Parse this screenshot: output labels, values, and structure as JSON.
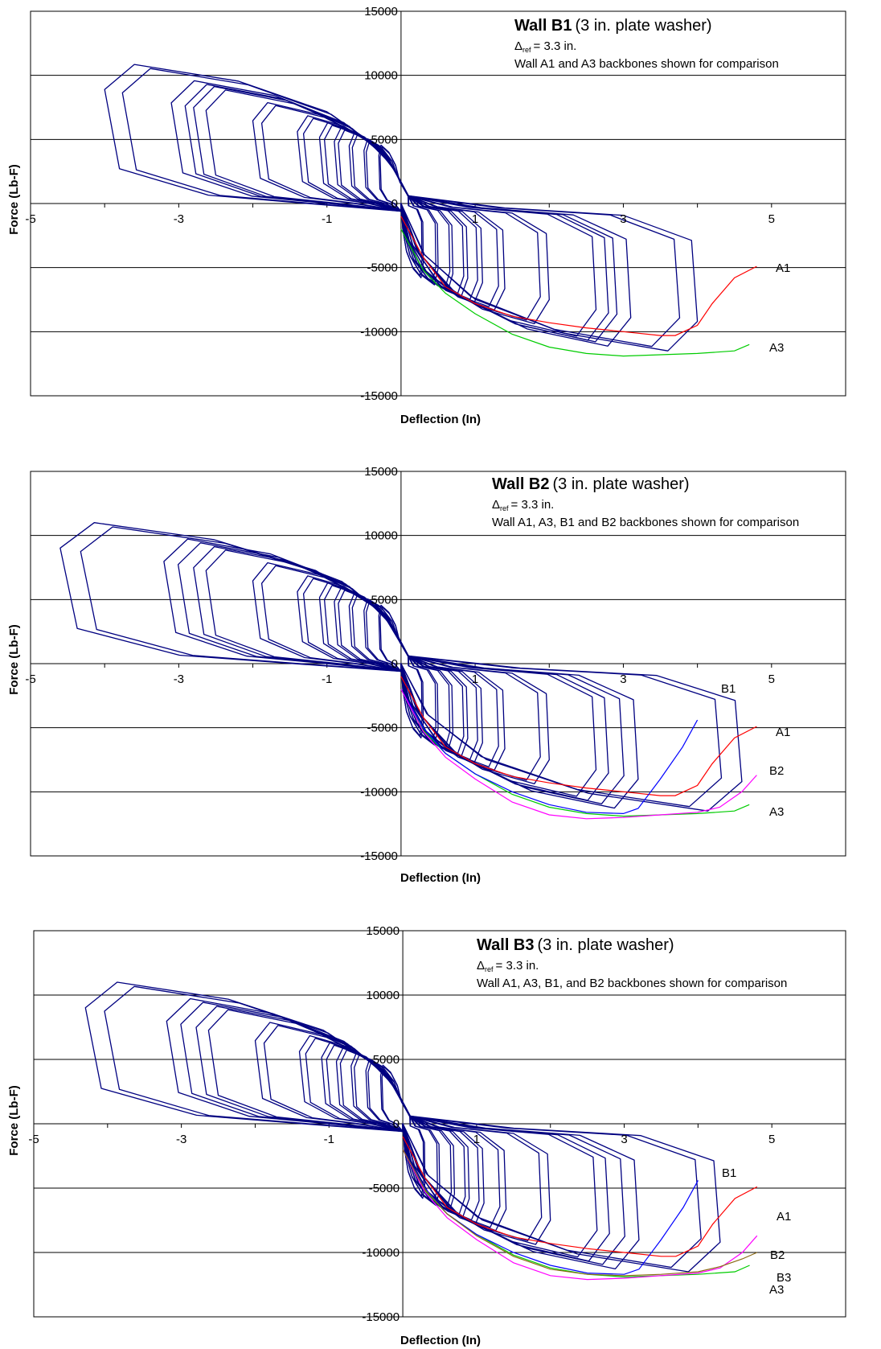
{
  "chart_data": [
    {
      "type": "line",
      "title_bold": "Wall B1",
      "title_rest": "(3 in. plate washer)",
      "delta_symbol": "Δ",
      "delta_sub": "ref",
      "delta_text": "= 3.3 in.",
      "note": "Wall A1 and A3 backbones shown for comparison",
      "xlabel": "Deflection (In)",
      "ylabel": "Force (Lb-F)",
      "xlim": [
        -5,
        6
      ],
      "ylim": [
        -15000,
        15000
      ],
      "xticks": [
        "-5",
        "-3",
        "-1",
        "1",
        "3",
        "5"
      ],
      "yticks": [
        "15000",
        "10000",
        "5000",
        "0",
        "-5000",
        "-10000",
        "-15000"
      ],
      "grid": "horizontal",
      "hysteresis_color": "#000080",
      "hysteresis_amplitudes": [
        0.3,
        0.5,
        0.7,
        0.9,
        1.1,
        1.4,
        2.0,
        2.8,
        3.1,
        4.0
      ],
      "series": [
        {
          "name": "A1",
          "color": "#ff0000",
          "x": [
            0.0,
            0.3,
            0.6,
            1.0,
            1.5,
            2.0,
            2.5,
            3.0,
            3.5,
            3.7,
            4.0,
            4.2,
            4.5,
            4.8
          ],
          "y": [
            -1000,
            -4200,
            -6500,
            -7800,
            -8800,
            -9300,
            -9700,
            -10000,
            -10300,
            -10300,
            -9500,
            -7800,
            -5800,
            -4900
          ]
        },
        {
          "name": "A3",
          "color": "#00cc00",
          "x": [
            0.0,
            0.3,
            0.6,
            1.0,
            1.5,
            2.0,
            2.5,
            3.0,
            3.5,
            4.0,
            4.5,
            4.7
          ],
          "y": [
            -2000,
            -5200,
            -7000,
            -8600,
            -10200,
            -11200,
            -11700,
            -11900,
            -11800,
            -11700,
            -11500,
            -11000
          ]
        }
      ]
    },
    {
      "type": "line",
      "title_bold": "Wall B2",
      "title_rest": "(3 in. plate washer)",
      "delta_symbol": "Δ",
      "delta_sub": "ref",
      "delta_text": "= 3.3 in.",
      "note": "Wall A1, A3, B1 and B2 backbones shown for comparison",
      "xlabel": "Deflection (In)",
      "ylabel": "Force (Lb-F)",
      "xlim": [
        -5,
        6
      ],
      "ylim": [
        -15000,
        15000
      ],
      "xticks": [
        "-5",
        "-3",
        "-1",
        "1",
        "3",
        "5"
      ],
      "yticks": [
        "15000",
        "10000",
        "5000",
        "0",
        "-5000",
        "-10000",
        "-15000"
      ],
      "grid": "horizontal",
      "hysteresis_color": "#000080",
      "hysteresis_amplitudes": [
        0.3,
        0.5,
        0.7,
        0.9,
        1.1,
        1.4,
        2.0,
        2.8,
        3.2,
        4.6
      ],
      "series": [
        {
          "name": "A1",
          "color": "#ff0000",
          "x": [
            0.0,
            0.3,
            0.6,
            1.0,
            1.5,
            2.0,
            2.5,
            3.0,
            3.5,
            3.7,
            4.0,
            4.2,
            4.5,
            4.8
          ],
          "y": [
            -1000,
            -4200,
            -6500,
            -7800,
            -8800,
            -9300,
            -9700,
            -10000,
            -10300,
            -10300,
            -9500,
            -7800,
            -5800,
            -4900
          ]
        },
        {
          "name": "A3",
          "color": "#00cc00",
          "x": [
            0.0,
            0.3,
            0.6,
            1.0,
            1.5,
            2.0,
            2.5,
            3.0,
            3.5,
            4.0,
            4.5,
            4.7
          ],
          "y": [
            -2000,
            -5200,
            -7000,
            -8600,
            -10200,
            -11200,
            -11700,
            -11900,
            -11800,
            -11700,
            -11500,
            -11000
          ]
        },
        {
          "name": "B1",
          "color": "#0000ff",
          "x": [
            0.0,
            0.3,
            0.6,
            1.0,
            1.5,
            2.0,
            2.5,
            3.0,
            3.2,
            3.5,
            3.8,
            4.0
          ],
          "y": [
            -2000,
            -5000,
            -7000,
            -8600,
            -10000,
            -11000,
            -11600,
            -11700,
            -11300,
            -9000,
            -6500,
            -4400
          ]
        },
        {
          "name": "B2",
          "color": "#ff00ff",
          "x": [
            0.0,
            0.3,
            0.6,
            1.0,
            1.5,
            2.0,
            2.5,
            3.0,
            3.5,
            4.0,
            4.3,
            4.6,
            4.8
          ],
          "y": [
            -2000,
            -5300,
            -7300,
            -9000,
            -10800,
            -11800,
            -12100,
            -12000,
            -11800,
            -11600,
            -11200,
            -10000,
            -8700
          ]
        }
      ]
    },
    {
      "type": "line",
      "title_bold": "Wall B3",
      "title_rest": "(3 in. plate washer)",
      "delta_symbol": "Δ",
      "delta_sub": "ref",
      "delta_text": "= 3.3 in.",
      "note": "Wall A1, A3, B1, and B2 backbones shown for comparison",
      "xlabel": "Deflection (In)",
      "ylabel": "Force (Lb-F)",
      "xlim": [
        -5,
        6
      ],
      "ylim": [
        -15000,
        15000
      ],
      "xticks": [
        "-5",
        "-3",
        "-1",
        "1",
        "3",
        "5"
      ],
      "yticks": [
        "15000",
        "10000",
        "5000",
        "0",
        "-5000",
        "-10000",
        "-15000"
      ],
      "grid": "horizontal",
      "hysteresis_color": "#000080",
      "hysteresis_amplitudes": [
        0.3,
        0.5,
        0.7,
        0.9,
        1.1,
        1.4,
        2.0,
        2.8,
        3.2,
        4.3
      ],
      "series": [
        {
          "name": "A1",
          "color": "#ff0000",
          "x": [
            0.0,
            0.3,
            0.6,
            1.0,
            1.5,
            2.0,
            2.5,
            3.0,
            3.5,
            3.7,
            4.0,
            4.2,
            4.5,
            4.8
          ],
          "y": [
            -1000,
            -4200,
            -6500,
            -7800,
            -8800,
            -9300,
            -9700,
            -10000,
            -10300,
            -10300,
            -9500,
            -7800,
            -5800,
            -4900
          ]
        },
        {
          "name": "A3",
          "color": "#00cc00",
          "x": [
            0.0,
            0.3,
            0.6,
            1.0,
            1.5,
            2.0,
            2.5,
            3.0,
            3.5,
            4.0,
            4.5,
            4.7
          ],
          "y": [
            -2000,
            -5200,
            -7000,
            -8600,
            -10200,
            -11200,
            -11700,
            -11900,
            -11800,
            -11700,
            -11500,
            -11000
          ]
        },
        {
          "name": "B1",
          "color": "#0000ff",
          "x": [
            0.0,
            0.3,
            0.6,
            1.0,
            1.5,
            2.0,
            2.5,
            3.0,
            3.2,
            3.5,
            3.8,
            4.0
          ],
          "y": [
            -2000,
            -5000,
            -7000,
            -8600,
            -10000,
            -11000,
            -11600,
            -11700,
            -11300,
            -9000,
            -6500,
            -4400
          ]
        },
        {
          "name": "B2",
          "color": "#ff00ff",
          "x": [
            0.0,
            0.3,
            0.6,
            1.0,
            1.5,
            2.0,
            2.5,
            3.0,
            3.5,
            4.0,
            4.3,
            4.6,
            4.8
          ],
          "y": [
            -2000,
            -5300,
            -7300,
            -9000,
            -10800,
            -11800,
            -12100,
            -12000,
            -11800,
            -11600,
            -11200,
            -10000,
            -8700
          ]
        },
        {
          "name": "B3",
          "color": "#8b6914",
          "x": [
            0.0,
            0.3,
            0.6,
            1.0,
            1.5,
            2.0,
            2.5,
            3.0,
            3.5,
            4.0,
            4.3,
            4.6,
            4.8
          ],
          "y": [
            -2000,
            -5100,
            -7000,
            -8700,
            -10300,
            -11300,
            -11700,
            -11800,
            -11700,
            -11500,
            -11100,
            -10500,
            -10000
          ]
        }
      ]
    }
  ]
}
